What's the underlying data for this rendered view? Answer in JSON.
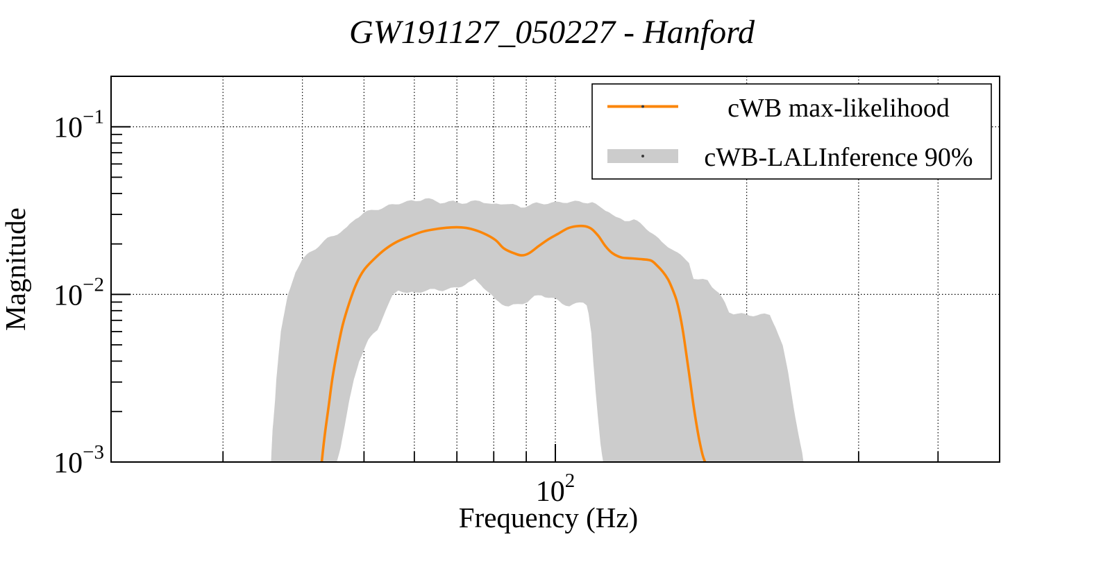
{
  "title": "GW191127_050227 - Hanford",
  "axes": {
    "xlabel": "Frequency (Hz)",
    "ylabel": "Magnitude",
    "x_scale": "log",
    "y_scale": "log",
    "xlim": [
      20,
      500
    ],
    "ylim": [
      0.001,
      0.2
    ],
    "grid": "dotted",
    "x_major_ticks": [
      {
        "value": 100,
        "base": "10",
        "exp": "2"
      }
    ],
    "x_minor_ticks": [
      30,
      40,
      50,
      60,
      70,
      80,
      90,
      200,
      300,
      400
    ],
    "y_major_ticks": [
      {
        "value": 0.1,
        "base": "10",
        "exp": "−1"
      },
      {
        "value": 0.01,
        "base": "10",
        "exp": "−2"
      },
      {
        "value": 0.001,
        "base": "10",
        "exp": "−3"
      }
    ],
    "y_minor_ticks": [
      0.002,
      0.003,
      0.004,
      0.005,
      0.006,
      0.007,
      0.008,
      0.009,
      0.02,
      0.03,
      0.04,
      0.05,
      0.06,
      0.07,
      0.08,
      0.09
    ]
  },
  "legend": {
    "position": "upper right",
    "items": [
      {
        "label": "cWB max-likelihood",
        "swatch": "line",
        "color": "#fb8609"
      },
      {
        "label": "cWB-LALInference 90%",
        "swatch": "patch",
        "color": "#cccccc"
      }
    ]
  },
  "chart_data": {
    "type": "line+band",
    "title": "GW191127_050227 - Hanford",
    "xlabel": "Frequency (Hz)",
    "ylabel": "Magnitude",
    "xlim": [
      20,
      500
    ],
    "ylim": [
      0.001,
      0.2
    ],
    "series": [
      {
        "name": "cWB max-likelihood",
        "type": "line",
        "color": "#fb8609",
        "points": [
          [
            42.9,
            0.001
          ],
          [
            43.4,
            0.00148
          ],
          [
            44.0,
            0.00216
          ],
          [
            44.6,
            0.00317
          ],
          [
            45.4,
            0.00464
          ],
          [
            46.3,
            0.0066
          ],
          [
            47.4,
            0.00888
          ],
          [
            48.6,
            0.0115
          ],
          [
            50.0,
            0.014
          ],
          [
            51.9,
            0.0163
          ],
          [
            53.9,
            0.0185
          ],
          [
            56.2,
            0.0205
          ],
          [
            58.8,
            0.0221
          ],
          [
            61.9,
            0.0237
          ],
          [
            65.2,
            0.0246
          ],
          [
            68.6,
            0.0251
          ],
          [
            71.1,
            0.0251
          ],
          [
            73.6,
            0.0246
          ],
          [
            77.0,
            0.0232
          ],
          [
            80.5,
            0.0211
          ],
          [
            83.0,
            0.0188
          ],
          [
            86.4,
            0.0175
          ],
          [
            88.6,
            0.0171
          ],
          [
            90.9,
            0.0176
          ],
          [
            94.1,
            0.0194
          ],
          [
            97.5,
            0.0213
          ],
          [
            101.0,
            0.023
          ],
          [
            104.6,
            0.0248
          ],
          [
            107.8,
            0.0255
          ],
          [
            111.4,
            0.0255
          ],
          [
            114.0,
            0.0246
          ],
          [
            116.9,
            0.0223
          ],
          [
            119.9,
            0.0194
          ],
          [
            123.0,
            0.0176
          ],
          [
            127.1,
            0.0166
          ],
          [
            132.0,
            0.0164
          ],
          [
            137.0,
            0.0162
          ],
          [
            141.5,
            0.0159
          ],
          [
            144.7,
            0.0148
          ],
          [
            147.7,
            0.0136
          ],
          [
            150.4,
            0.0123
          ],
          [
            152.6,
            0.0109
          ],
          [
            155.0,
            0.0093
          ],
          [
            156.9,
            0.0077
          ],
          [
            158.8,
            0.006
          ],
          [
            160.7,
            0.00442
          ],
          [
            163.0,
            0.00302
          ],
          [
            165.3,
            0.00206
          ],
          [
            168.1,
            0.00141
          ],
          [
            170.4,
            0.00111
          ],
          [
            172.0,
            0.001
          ]
        ]
      },
      {
        "name": "cWB-LALInference 90%",
        "type": "band",
        "color": "#cccccc",
        "band_upper": [
          [
            35.7,
            0.001
          ],
          [
            35.9,
            0.00155
          ],
          [
            36.2,
            0.00227
          ],
          [
            36.4,
            0.00317
          ],
          [
            36.7,
            0.00442
          ],
          [
            37.0,
            0.006
          ],
          [
            37.5,
            0.0078
          ],
          [
            37.9,
            0.00966
          ],
          [
            38.5,
            0.0118
          ],
          [
            39.0,
            0.0139
          ],
          [
            39.9,
            0.0161
          ],
          [
            41.0,
            0.0178
          ],
          [
            42.4,
            0.0195
          ],
          [
            43.8,
            0.0213
          ],
          [
            45.4,
            0.0228
          ],
          [
            47.0,
            0.0246
          ],
          [
            48.5,
            0.0284
          ],
          [
            50.0,
            0.0309
          ],
          [
            52.0,
            0.0324
          ],
          [
            54.7,
            0.034
          ],
          [
            57.5,
            0.0353
          ],
          [
            60.3,
            0.0356
          ],
          [
            62.4,
            0.0371
          ],
          [
            65.9,
            0.0356
          ],
          [
            69.1,
            0.0362
          ],
          [
            72.5,
            0.0353
          ],
          [
            76.0,
            0.0362
          ],
          [
            79.5,
            0.0337
          ],
          [
            83.3,
            0.0348
          ],
          [
            88.3,
            0.0335
          ],
          [
            93.4,
            0.0353
          ],
          [
            100.0,
            0.035
          ],
          [
            105.9,
            0.0353
          ],
          [
            110.6,
            0.0353
          ],
          [
            114.3,
            0.0356
          ],
          [
            117.2,
            0.0335
          ],
          [
            121.4,
            0.0318
          ],
          [
            124.5,
            0.0289
          ],
          [
            128.6,
            0.0276
          ],
          [
            132.9,
            0.0278
          ],
          [
            137.6,
            0.0252
          ],
          [
            142.2,
            0.023
          ],
          [
            147.0,
            0.0203
          ],
          [
            152.3,
            0.019
          ],
          [
            157.4,
            0.0172
          ],
          [
            162.3,
            0.0158
          ],
          [
            165.0,
            0.0126
          ],
          [
            167.7,
            0.0122
          ],
          [
            173.6,
            0.0122
          ],
          [
            176.5,
            0.0111
          ],
          [
            180.7,
            0.01
          ],
          [
            184.9,
            0.00875
          ],
          [
            187.6,
            0.0078
          ],
          [
            190.7,
            0.00766
          ],
          [
            202.1,
            0.00759
          ],
          [
            213.4,
            0.00766
          ],
          [
            217.5,
            0.00766
          ],
          [
            222.0,
            0.00647
          ],
          [
            227.9,
            0.00486
          ],
          [
            232.6,
            0.00332
          ],
          [
            237.4,
            0.00206
          ],
          [
            241.6,
            0.00141
          ],
          [
            245.8,
            0.001
          ]
        ],
        "band_lower": [
          [
            45.3,
            0.001
          ],
          [
            45.9,
            0.0012
          ],
          [
            46.7,
            0.00166
          ],
          [
            47.4,
            0.00227
          ],
          [
            48.2,
            0.00311
          ],
          [
            49.1,
            0.00402
          ],
          [
            50.8,
            0.00535
          ],
          [
            51.7,
            0.00589
          ],
          [
            52.5,
            0.0063
          ],
          [
            53.4,
            0.00727
          ],
          [
            54.7,
            0.00877
          ],
          [
            55.5,
            0.00994
          ],
          [
            56.6,
            0.0107
          ],
          [
            58.5,
            0.01
          ],
          [
            60.5,
            0.0102
          ],
          [
            62.4,
            0.0104
          ],
          [
            64.6,
            0.0107
          ],
          [
            66.5,
            0.0107
          ],
          [
            68.5,
            0.0109
          ],
          [
            70.4,
            0.0112
          ],
          [
            73.0,
            0.0118
          ],
          [
            74.7,
            0.0122
          ],
          [
            76.4,
            0.0114
          ],
          [
            80.4,
            0.00917
          ],
          [
            82.4,
            0.00875
          ],
          [
            84.4,
            0.00846
          ],
          [
            87.3,
            0.00875
          ],
          [
            90.4,
            0.00917
          ],
          [
            92.7,
            0.00977
          ],
          [
            95.1,
            0.01
          ],
          [
            100.0,
            0.00928
          ],
          [
            102.5,
            0.00875
          ],
          [
            105.2,
            0.00846
          ],
          [
            107.8,
            0.00866
          ],
          [
            110.6,
            0.00896
          ],
          [
            112.0,
            0.00875
          ],
          [
            112.8,
            0.0078
          ],
          [
            113.9,
            0.00592
          ],
          [
            114.7,
            0.00402
          ],
          [
            115.6,
            0.00273
          ],
          [
            116.6,
            0.00188
          ],
          [
            117.8,
            0.00128
          ],
          [
            118.9,
            0.001
          ]
        ]
      }
    ],
    "legend_entries": [
      "cWB max-likelihood",
      "cWB-LALInference 90%"
    ]
  }
}
